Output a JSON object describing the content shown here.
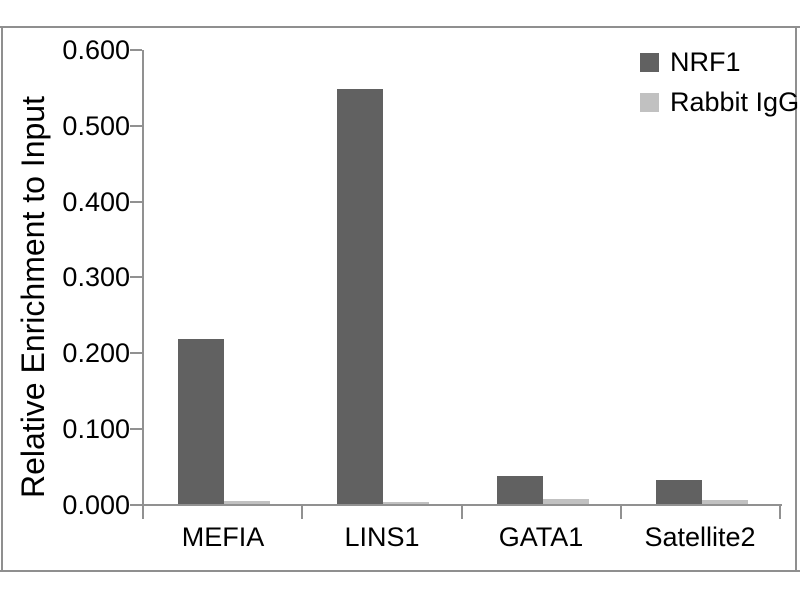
{
  "chart_data": {
    "type": "bar",
    "title": "",
    "xlabel": "",
    "ylabel": "Relative Enrichment to Input",
    "categories": [
      "MEFIA",
      "LINS1",
      "GATA1",
      "Satellite2"
    ],
    "series": [
      {
        "name": "NRF1",
        "color": "#616161",
        "values": [
          0.217,
          0.547,
          0.037,
          0.032
        ]
      },
      {
        "name": "Rabbit IgG",
        "color": "#c1c1c1",
        "values": [
          0.004,
          0.003,
          0.007,
          0.005
        ]
      }
    ],
    "ylim": [
      0,
      0.6
    ],
    "ytick_step": 0.1,
    "ytick_labels": [
      "0.000",
      "0.100",
      "0.200",
      "0.300",
      "0.400",
      "0.500",
      "0.600"
    ],
    "grid": false,
    "legend_position": "top-right",
    "plot_background": "#ffffff"
  },
  "colors": {
    "background": "#ffffff",
    "text": "#000000",
    "axis": "#919191",
    "frame": "#8f8f8f"
  }
}
